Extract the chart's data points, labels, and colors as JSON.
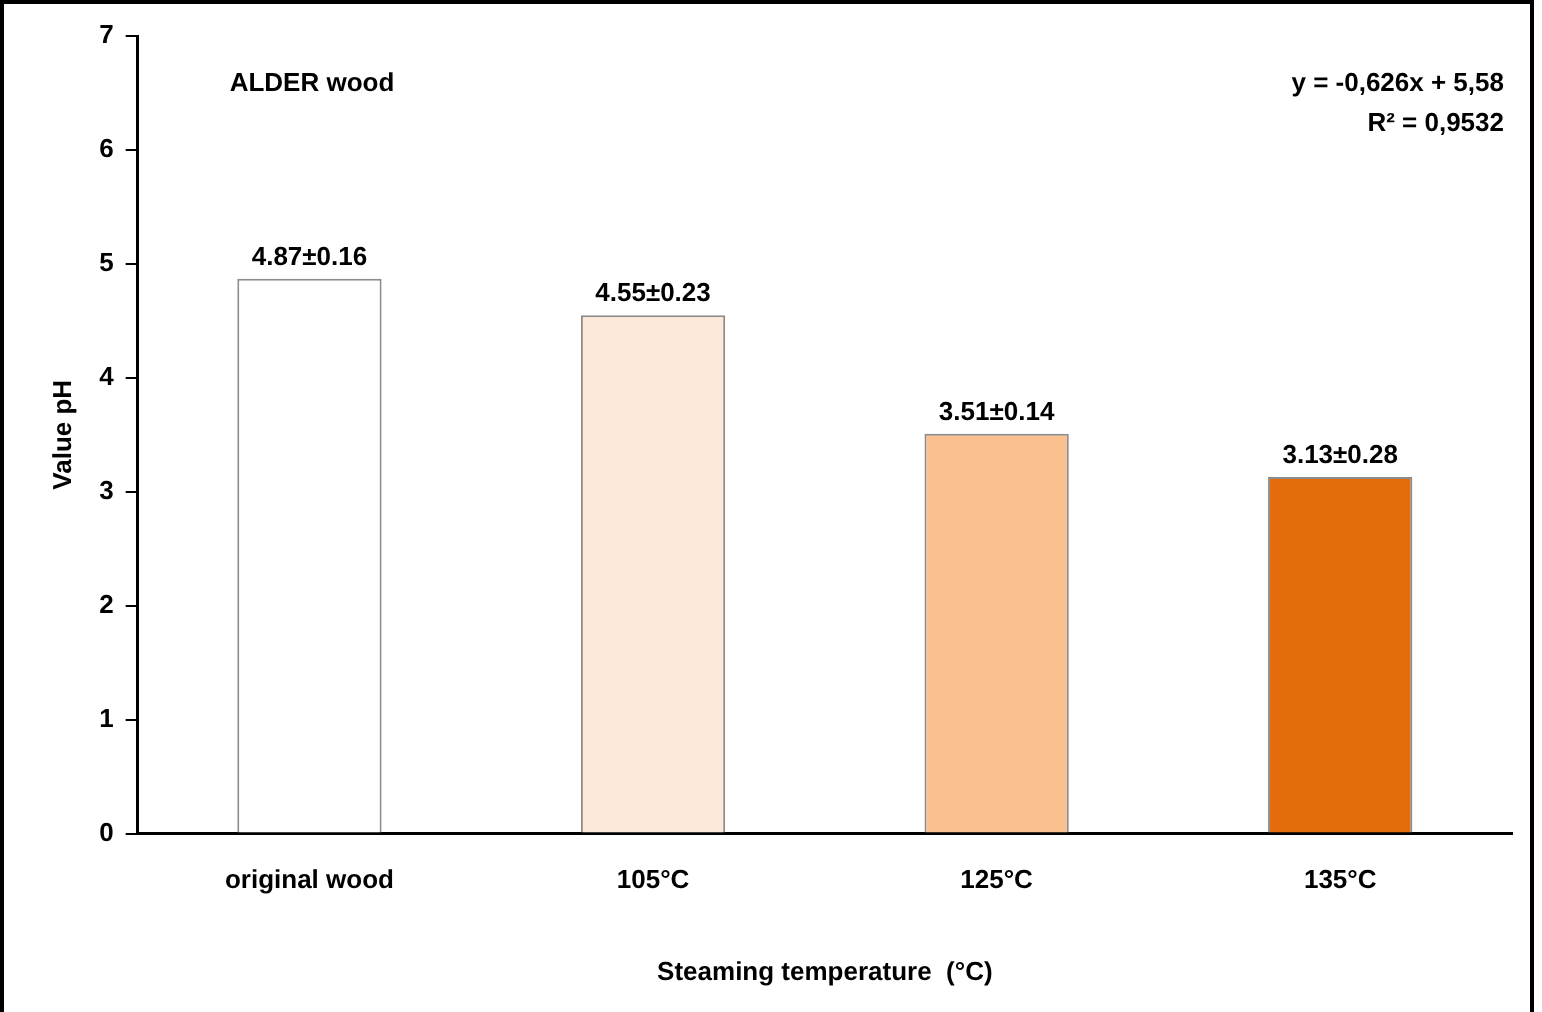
{
  "chart_data": {
    "type": "bar",
    "xlabel": "Steaming temperature  (°C)",
    "ylabel": "Value pH",
    "categories": [
      "original wood",
      "105°C",
      "125°C",
      "135°C"
    ],
    "values": [
      4.87,
      4.55,
      3.51,
      3.13
    ],
    "colors": [
      "#ffffff",
      "#fde9d9",
      "#fac090",
      "#e46c0a"
    ],
    "value_labels": [
      "4.87±0.16",
      "4.55±0.23",
      "3.51±0.14",
      "3.13±0.28"
    ],
    "ylim": [
      0,
      7
    ],
    "yticks": [
      0,
      1,
      2,
      3,
      4,
      5,
      6,
      7
    ],
    "grid": false,
    "legend": false,
    "annotations": [
      "ALDER wood",
      "y = -0,626x + 5,58",
      "R² = 0,9532"
    ]
  }
}
